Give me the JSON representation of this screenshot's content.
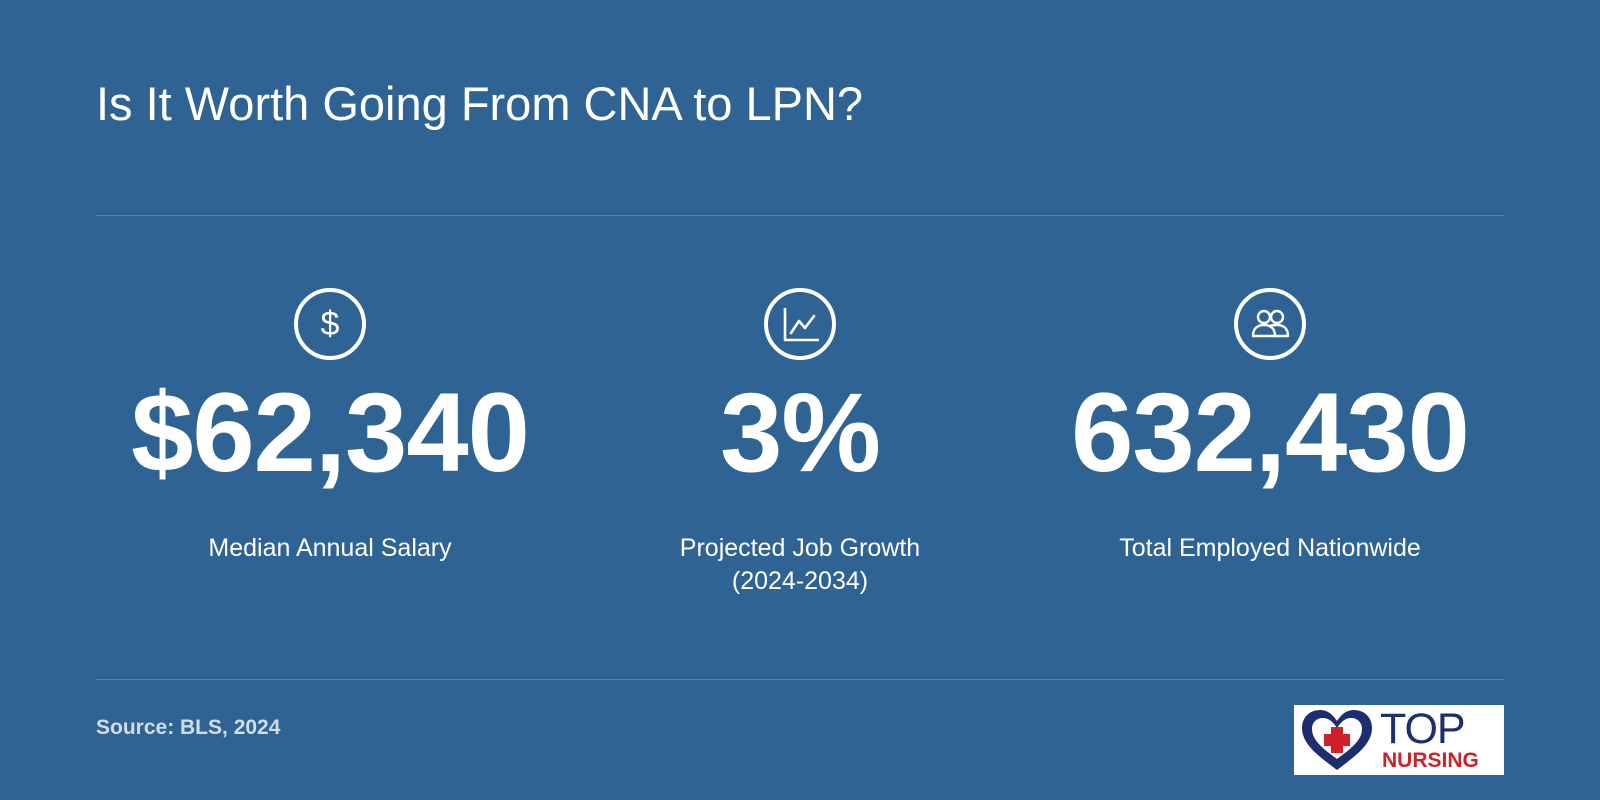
{
  "title": "Is It Worth Going From CNA to LPN?",
  "stats": [
    {
      "icon": "dollar-icon",
      "value": "$62,340",
      "label_lines": [
        "Median Annual Salary"
      ]
    },
    {
      "icon": "growth-chart-icon",
      "value": "3%",
      "label_lines": [
        "Projected Job Growth",
        "(2024-2034)"
      ]
    },
    {
      "icon": "people-icon",
      "value": "632,430",
      "label_lines": [
        "Total Employed Nationwide"
      ]
    }
  ],
  "source": "Source: BLS, 2024",
  "logo": {
    "line1": "TOP",
    "line2": "NURSING"
  },
  "colors": {
    "background": "#2f6393",
    "text": "#ffffff",
    "logo_navy": "#1d2e6e",
    "logo_red": "#d0202a"
  }
}
